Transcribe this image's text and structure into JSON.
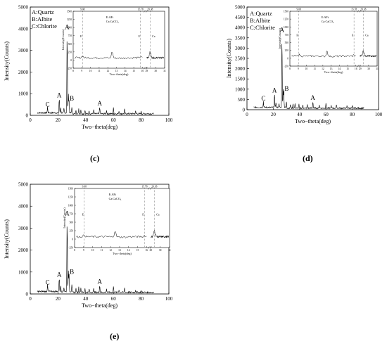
{
  "chart_data": [
    {
      "id": "c",
      "type": "line",
      "panel_label": "(c)",
      "xlabel": "Two−theta(deg)",
      "ylabel": "Intensity(Counts)",
      "xlim": [
        0,
        100
      ],
      "ylim": [
        0,
        5000
      ],
      "xticks": [
        "0",
        "20",
        "40",
        "60",
        "80",
        "100"
      ],
      "yticks": [
        "0",
        "1000",
        "2000",
        "3000",
        "4000",
        "5000"
      ],
      "legend": [
        "A:Quartz",
        "B:Albite",
        "C:Chlorite"
      ],
      "peaks": [
        {
          "x": 12.5,
          "label": "C",
          "y": 280
        },
        {
          "x": 20.9,
          "label": "A",
          "y": 700
        },
        {
          "x": 26.6,
          "label": "A",
          "y": 3850
        },
        {
          "x": 28.0,
          "label": "B",
          "y": 560
        },
        {
          "x": 50.1,
          "label": "A",
          "y": 330
        }
      ],
      "inset": {
        "xlabel": "Two−theta(deg)",
        "ylabel": "Intensity(Counts)",
        "xlim": [
          8,
          31
        ],
        "ylim": [
          -250,
          1500
        ],
        "xticks": [
          "8",
          "9",
          "10",
          "11",
          "12",
          "13",
          "14",
          "15",
          "16",
          "29",
          "30",
          "31"
        ],
        "yticks": [
          "-250",
          "0",
          "250",
          "500",
          "750",
          "1000",
          "1250",
          "1500"
        ],
        "legend": [
          "E:AFt",
          "Ca:CaCO₃"
        ],
        "refs": [
          {
            "x": 9.08,
            "label": "9.08",
            "marker": "E"
          },
          {
            "x": 15.78,
            "label": "15.78",
            "marker": "E"
          },
          {
            "x": 29.38,
            "label": "29.38",
            "marker": "Ca"
          }
        ]
      }
    },
    {
      "id": "d",
      "type": "line",
      "panel_label": "(d)",
      "xlabel": "Two−theta(deg)",
      "ylabel": "Intensity(Counts)",
      "xlim": [
        0,
        100
      ],
      "ylim": [
        0,
        5000
      ],
      "xticks": [
        "0",
        "20",
        "40",
        "60",
        "80",
        "100"
      ],
      "yticks": [
        "0",
        "500",
        "1000",
        "1500",
        "2000",
        "2500",
        "3000",
        "3500",
        "4000",
        "4500",
        "5000"
      ],
      "legend": [
        "A:Quartz",
        "B:Albite",
        "C:Chlorite"
      ],
      "peaks": [
        {
          "x": 12.5,
          "label": "C",
          "y": 300
        },
        {
          "x": 20.9,
          "label": "A",
          "y": 700
        },
        {
          "x": 26.6,
          "label": "A",
          "y": 3650
        },
        {
          "x": 28.0,
          "label": "B",
          "y": 780
        },
        {
          "x": 50.1,
          "label": "A",
          "y": 340
        }
      ],
      "inset": {
        "xlabel": "Two−theta(deg)",
        "ylabel": "Intensity(Counts)",
        "xlim": [
          8,
          31
        ],
        "ylim": [
          -250,
          1500
        ],
        "xticks": [
          "8",
          "9",
          "10",
          "11",
          "12",
          "13",
          "14",
          "15",
          "16",
          "29",
          "30",
          "31"
        ],
        "yticks": [
          "-250",
          "0",
          "250",
          "500",
          "750",
          "1000",
          "1250",
          "1500"
        ],
        "legend": [
          "E:AFt",
          "Ca:CaCO₃"
        ],
        "refs": [
          {
            "x": 9.08,
            "label": "9.08",
            "marker": "E"
          },
          {
            "x": 15.78,
            "label": "15.78",
            "marker": "E"
          },
          {
            "x": 29.38,
            "label": "29.38",
            "marker": "Ca"
          }
        ]
      }
    },
    {
      "id": "e",
      "type": "line",
      "panel_label": "(e)",
      "xlabel": "Two−theta(deg)",
      "ylabel": "Intensity(Counts)",
      "xlim": [
        0,
        100
      ],
      "ylim": [
        0,
        5000
      ],
      "xticks": [
        "0",
        "20",
        "40",
        "60",
        "80",
        "100"
      ],
      "yticks": [
        "0",
        "1000",
        "2000",
        "3000",
        "4000",
        "5000"
      ],
      "legend": [],
      "peaks": [
        {
          "x": 12.5,
          "label": "C",
          "y": 300
        },
        {
          "x": 20.9,
          "label": "A",
          "y": 650
        },
        {
          "x": 26.6,
          "label": "A",
          "y": 3450
        },
        {
          "x": 28.0,
          "label": "B",
          "y": 780
        },
        {
          "x": 50.1,
          "label": "A",
          "y": 330
        }
      ],
      "inset": {
        "xlabel": "Two−theta(deg)",
        "ylabel": "Intensity(Counts)",
        "xlim": [
          8,
          31
        ],
        "ylim": [
          -250,
          1500
        ],
        "xticks": [
          "8",
          "9",
          "10",
          "11",
          "12",
          "13",
          "14",
          "15",
          "16",
          "29",
          "30",
          "31"
        ],
        "yticks": [
          "-250",
          "0",
          "250",
          "500",
          "750",
          "1000",
          "1250",
          "1500"
        ],
        "legend": [
          "E:AFt",
          "Ca:CaCO₃"
        ],
        "refs": [
          {
            "x": 9.08,
            "label": "9.08",
            "marker": "E"
          },
          {
            "x": 15.78,
            "label": "15.78",
            "marker": "E"
          },
          {
            "x": 29.38,
            "label": "29.38",
            "marker": "Ca"
          }
        ]
      }
    }
  ]
}
